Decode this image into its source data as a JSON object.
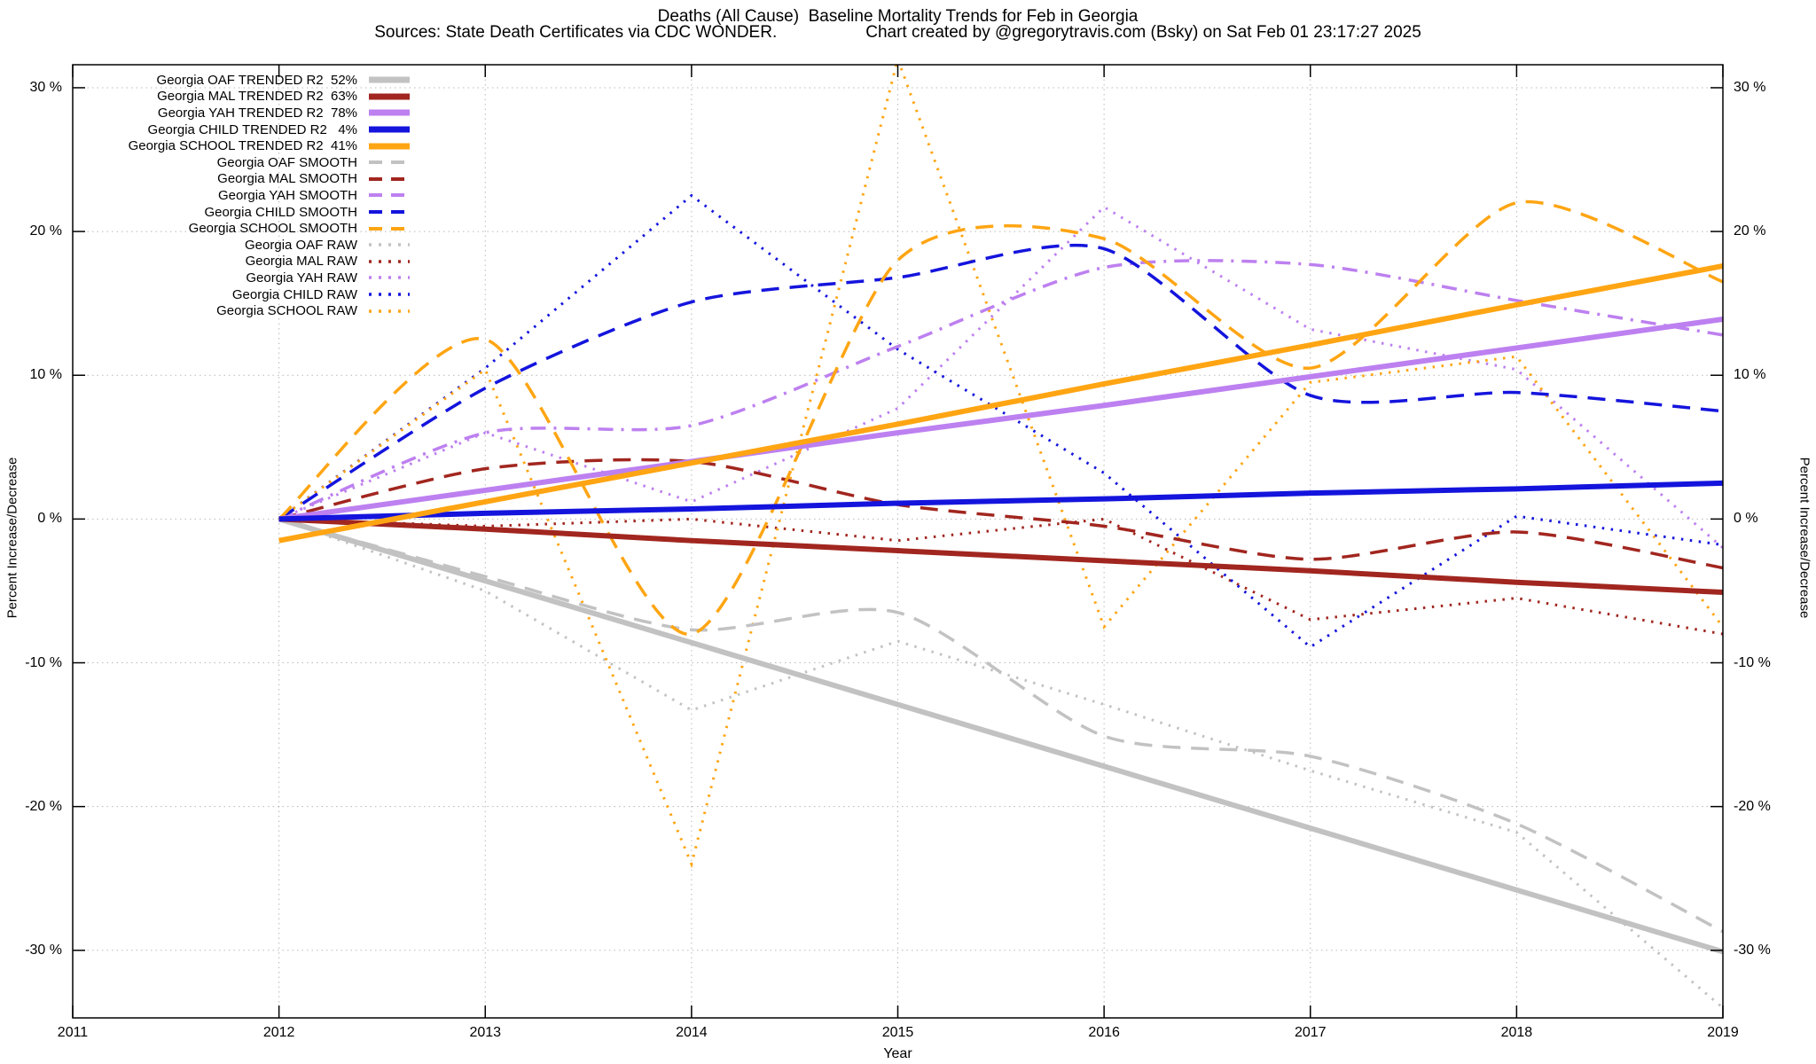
{
  "title": {
    "line1": "Deaths (All Cause)  Baseline Mortality Trends for Feb in Georgia",
    "line2_sources": "Sources: State Death Certificates via CDC WONDER.",
    "line2_credit": "Chart created by @gregorytravis.com (Bsky) on Sat Feb 01 23:17:27 2025"
  },
  "axes": {
    "y_title_left": "Percent Increase/Decrease",
    "y_title_right": "Percent Increase/Decrease",
    "x_title": "Year",
    "y_ticks": [
      {
        "v": 30,
        "label": "30 %"
      },
      {
        "v": 20,
        "label": "20 %"
      },
      {
        "v": 10,
        "label": "10 %"
      },
      {
        "v": 0,
        "label": "0 %"
      },
      {
        "v": -10,
        "label": "-10 %"
      },
      {
        "v": -20,
        "label": "-20 %"
      },
      {
        "v": -30,
        "label": "-30 %"
      }
    ],
    "x_ticks": [
      {
        "v": 2011,
        "label": "2011"
      },
      {
        "v": 2012,
        "label": "2012"
      },
      {
        "v": 2013,
        "label": "2013"
      },
      {
        "v": 2014,
        "label": "2014"
      },
      {
        "v": 2015,
        "label": "2015"
      },
      {
        "v": 2016,
        "label": "2016"
      },
      {
        "v": 2017,
        "label": "2017"
      },
      {
        "v": 2018,
        "label": "2018"
      },
      {
        "v": 2019,
        "label": "2019"
      }
    ]
  },
  "colors": {
    "gray": "#c2c2c2",
    "darkred": "#a1261f",
    "purple": "#bd80f0",
    "blue": "#1414dd",
    "orange": "#ffa513",
    "grid": "#b8b8b8",
    "border": "#000000"
  },
  "chart_data": {
    "type": "line",
    "title": "Deaths (All Cause)  Baseline Mortality Trends for Feb in Georgia",
    "xlabel": "Year",
    "ylabel": "Percent Increase/Decrease",
    "xlim": [
      2011,
      2019
    ],
    "ylim": [
      -34.7,
      31.6
    ],
    "grid": true,
    "legend_position": "top-left",
    "x": [
      2012,
      2013,
      2014,
      2015,
      2016,
      2017,
      2018,
      2019
    ],
    "series": [
      {
        "name": "oaf-trended",
        "label": "Georgia OAF TRENDED R2  52%",
        "color": "gray",
        "style": "solid",
        "values": [
          0,
          -4.3,
          -8.6,
          -12.9,
          -17.2,
          -21.5,
          -25.8,
          -30.1
        ]
      },
      {
        "name": "mal-trended",
        "label": "Georgia MAL TRENDED R2  63%",
        "color": "darkred",
        "style": "solid",
        "values": [
          0,
          -0.7,
          -1.5,
          -2.2,
          -2.9,
          -3.6,
          -4.4,
          -5.1
        ]
      },
      {
        "name": "yah-trended",
        "label": "Georgia YAH TRENDED R2  78%",
        "color": "purple",
        "style": "solid",
        "values": [
          0,
          2.0,
          4.0,
          6.0,
          7.9,
          9.9,
          11.9,
          13.9
        ]
      },
      {
        "name": "child-trended",
        "label": "Georgia CHILD TRENDED R2   4%",
        "color": "blue",
        "style": "solid",
        "values": [
          0,
          0.4,
          0.7,
          1.1,
          1.4,
          1.8,
          2.1,
          2.5
        ]
      },
      {
        "name": "school-trended",
        "label": "Georgia SCHOOL TRENDED R2  41%",
        "color": "orange",
        "style": "solid",
        "values": [
          -1.5,
          1.2,
          3.9,
          6.6,
          9.4,
          12.1,
          14.9,
          17.6
        ]
      },
      {
        "name": "oaf-smooth",
        "label": "Georgia OAF SMOOTH",
        "color": "gray",
        "style": "dashed",
        "values": [
          0,
          -4.0,
          -7.7,
          -6.5,
          -15.1,
          -16.5,
          -21.2,
          -28.7
        ]
      },
      {
        "name": "mal-smooth",
        "label": "Georgia MAL SMOOTH",
        "color": "darkred",
        "style": "dashed",
        "values": [
          0,
          3.5,
          4.0,
          1.0,
          -0.5,
          -2.8,
          -0.9,
          -3.4
        ]
      },
      {
        "name": "yah-smooth",
        "label": "Georgia YAH SMOOTH",
        "color": "purple",
        "style": "dashdot",
        "values": [
          0,
          6.0,
          6.5,
          12.0,
          17.5,
          17.7,
          15.2,
          12.8
        ]
      },
      {
        "name": "child-smooth",
        "label": "Georgia CHILD SMOOTH",
        "color": "blue",
        "style": "dashed",
        "values": [
          0,
          9.1,
          15.1,
          16.8,
          18.8,
          8.6,
          8.8,
          7.5
        ]
      },
      {
        "name": "school-smooth",
        "label": "Georgia SCHOOL SMOOTH",
        "color": "orange",
        "style": "dashed",
        "values": [
          0,
          12.5,
          -8.0,
          18.0,
          19.5,
          10.5,
          22.0,
          16.5
        ]
      },
      {
        "name": "oaf-raw",
        "label": "Georgia OAF RAW",
        "color": "gray",
        "style": "dotted",
        "values": [
          0,
          -5.0,
          -13.3,
          -8.5,
          -12.9,
          -17.5,
          -21.8,
          -34.0
        ]
      },
      {
        "name": "mal-raw",
        "label": "Georgia MAL RAW",
        "color": "darkred",
        "style": "dotted",
        "values": [
          0,
          -0.5,
          0,
          -1.5,
          0,
          -7.0,
          -5.5,
          -8.0
        ]
      },
      {
        "name": "yah-raw",
        "label": "Georgia YAH RAW",
        "color": "purple",
        "style": "dotted",
        "values": [
          0,
          6.0,
          1.2,
          7.7,
          21.7,
          13.2,
          10.4,
          -2.0
        ]
      },
      {
        "name": "child-raw",
        "label": "Georgia CHILD RAW",
        "color": "blue",
        "style": "dotted",
        "values": [
          0,
          10.5,
          22.5,
          11.8,
          3.2,
          -8.9,
          0.2,
          -1.8
        ]
      },
      {
        "name": "school-raw",
        "label": "Georgia SCHOOL RAW",
        "color": "orange",
        "style": "dotted",
        "values": [
          0,
          10.4,
          -24.0,
          32.0,
          -7.5,
          9.5,
          11.3,
          -7.5
        ]
      }
    ]
  }
}
